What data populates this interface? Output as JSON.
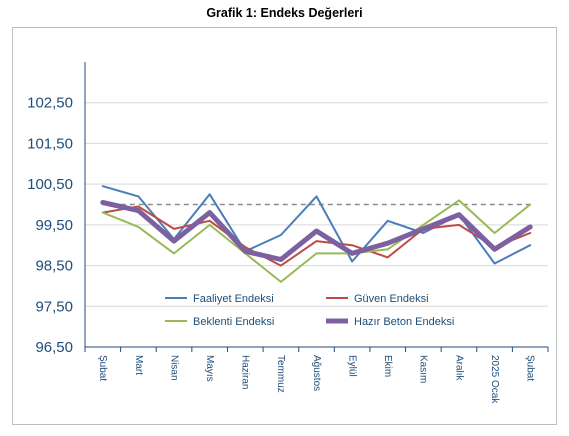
{
  "chart_data": {
    "type": "line",
    "title": "Grafik 1: Endeks Değerleri",
    "xlabel": "",
    "ylabel": "",
    "categories": [
      "Şubat",
      "Mart",
      "Nisan",
      "Mayıs",
      "Haziran",
      "Temmuz",
      "Ağustos",
      "Eylül",
      "Ekim",
      "Kasım",
      "Aralık",
      "2025 Ocak",
      "Şubat"
    ],
    "ylim": [
      96.5,
      103.5
    ],
    "y_ticks": [
      "96,50",
      "97,50",
      "98,50",
      "99,50",
      "100,50",
      "101,50",
      "102,50"
    ],
    "reference_line": {
      "value": 100,
      "style": "dashed"
    },
    "grid": true,
    "legend_position": "bottom-inside",
    "series": [
      {
        "name": "Faaliyet Endeksi",
        "color": "#4a7ebb",
        "values": [
          100.45,
          100.2,
          99.15,
          100.25,
          98.85,
          99.25,
          100.2,
          98.6,
          99.6,
          99.3,
          99.75,
          98.55,
          99.0
        ]
      },
      {
        "name": "Güven Endeksi",
        "color": "#be4b48",
        "values": [
          99.8,
          99.95,
          99.4,
          99.6,
          98.95,
          98.5,
          99.1,
          99.0,
          98.7,
          99.4,
          99.5,
          98.95,
          99.3
        ]
      },
      {
        "name": "Beklenti Endeksi",
        "color": "#98b954",
        "values": [
          99.8,
          99.45,
          98.8,
          99.5,
          98.8,
          98.1,
          98.8,
          98.8,
          98.9,
          99.5,
          100.1,
          99.3,
          100.0
        ]
      },
      {
        "name": "Hazır Beton Endeksi",
        "color": "#7d60a0",
        "values": [
          100.05,
          99.85,
          99.1,
          99.8,
          98.85,
          98.65,
          99.35,
          98.8,
          99.05,
          99.4,
          99.75,
          98.9,
          99.45
        ],
        "bold": true
      }
    ]
  }
}
